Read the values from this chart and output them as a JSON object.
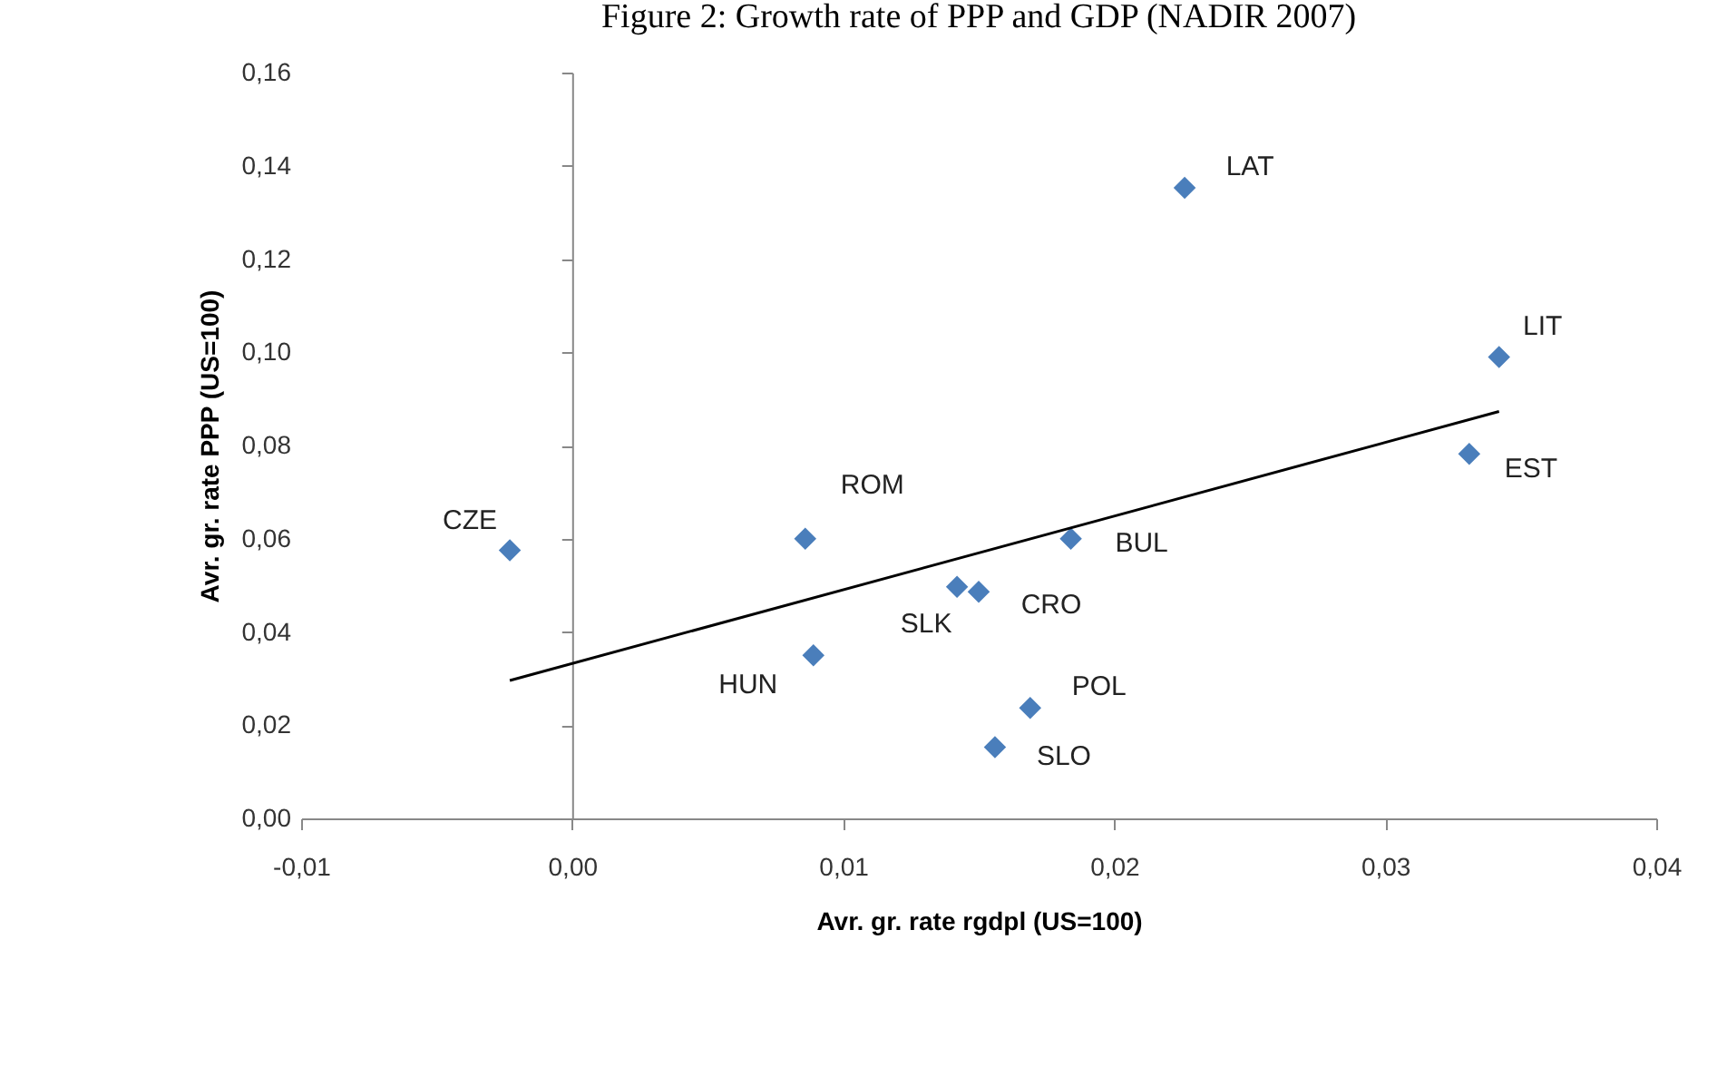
{
  "chart_data": {
    "type": "scatter",
    "title": "Figure 2: Growth rate of PPP and GDP (NADIR 2007)",
    "xlabel": "Avr. gr. rate rgdpl (US=100)",
    "ylabel": "Avr. gr. rate PPP (US=100)",
    "xlim": [
      -0.01,
      0.04
    ],
    "ylim": [
      0,
      0.16
    ],
    "xticks": [
      {
        "value": -0.01,
        "label": "-0,01"
      },
      {
        "value": 0,
        "label": "0,00"
      },
      {
        "value": 0.01,
        "label": "0,01"
      },
      {
        "value": 0.02,
        "label": "0,02"
      },
      {
        "value": 0.03,
        "label": "0,03"
      },
      {
        "value": 0.04,
        "label": "0,04"
      }
    ],
    "yticks": [
      {
        "value": 0,
        "label": "0,00"
      },
      {
        "value": 0.02,
        "label": "0,02"
      },
      {
        "value": 0.04,
        "label": "0,04"
      },
      {
        "value": 0.06,
        "label": "0,06"
      },
      {
        "value": 0.08,
        "label": "0,08"
      },
      {
        "value": 0.1,
        "label": "0,10"
      },
      {
        "value": 0.12,
        "label": "0,12"
      },
      {
        "value": 0.14,
        "label": "0,14"
      },
      {
        "value": 0.16,
        "label": "0,16"
      }
    ],
    "series": [
      {
        "type": "scatter",
        "color": "#4a7ebb",
        "marker": "diamond",
        "x": [
          -0.0023,
          0.0086,
          0.0089,
          0.0142,
          0.015,
          0.0156,
          0.0169,
          0.0184,
          0.0226,
          0.0331,
          0.0342
        ],
        "values": [
          0.0575,
          0.06,
          0.035,
          0.0497,
          0.0486,
          0.0153,
          0.0237,
          0.06,
          0.1353,
          0.0782,
          0.099
        ]
      },
      {
        "type": "line",
        "color": "#000000",
        "line_style": "solid",
        "x": [
          -0.0023,
          0.0342
        ],
        "values": [
          0.0296,
          0.0873
        ]
      }
    ],
    "annotations": [
      {
        "text": "CZE",
        "x": -0.0023,
        "y": 0.0575
      },
      {
        "text": "ROM",
        "x": 0.0086,
        "y": 0.06
      },
      {
        "text": "HUN",
        "x": 0.0089,
        "y": 0.035
      },
      {
        "text": "SLK",
        "x": 0.0142,
        "y": 0.0497
      },
      {
        "text": "CRO",
        "x": 0.015,
        "y": 0.0486
      },
      {
        "text": "SLO",
        "x": 0.0156,
        "y": 0.0153
      },
      {
        "text": "POL",
        "x": 0.0169,
        "y": 0.0237
      },
      {
        "text": "BUL",
        "x": 0.0184,
        "y": 0.06
      },
      {
        "text": "LAT",
        "x": 0.0226,
        "y": 0.1353
      },
      {
        "text": "EST",
        "x": 0.0331,
        "y": 0.0782
      },
      {
        "text": "LIT",
        "x": 0.0342,
        "y": 0.099
      }
    ]
  }
}
